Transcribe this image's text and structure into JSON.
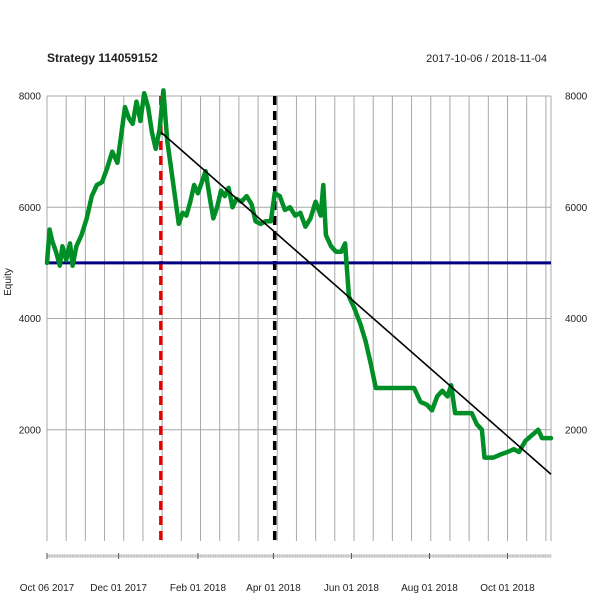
{
  "chart_data": {
    "type": "line",
    "title": "Strategy 114059152",
    "date_range": "2017-10-06 / 2018-11-04",
    "ylabel": "Equity",
    "xlabel": "",
    "x_range": [
      "2017-10-06",
      "2018-11-04"
    ],
    "ylim": [
      0,
      8000
    ],
    "y_ticks": [
      2000,
      4000,
      6000,
      8000
    ],
    "x_tick_labels": [
      {
        "date": "2017-10-06",
        "label": "Oct 06 2017"
      },
      {
        "date": "2017-12-01",
        "label": "Dec 01 2017"
      },
      {
        "date": "2018-02-01",
        "label": "Feb 01 2018"
      },
      {
        "date": "2018-04-01",
        "label": "Apr 01 2018"
      },
      {
        "date": "2018-06-01",
        "label": "Jun 01 2018"
      },
      {
        "date": "2018-08-01",
        "label": "Aug 01 2018"
      },
      {
        "date": "2018-10-01",
        "label": "Oct 01 2018"
      }
    ],
    "grid": true,
    "colors": {
      "equity": "#008f26",
      "baseline": "#000080",
      "trend": "#000000",
      "marker_red": "#e00000",
      "marker_black": "#000000",
      "grid": "#a8a8a8"
    },
    "series": [
      {
        "points": [
          [
            "2017-10-06",
            5000
          ],
          [
            "2017-10-08",
            5600
          ],
          [
            "2017-10-10",
            5400
          ],
          [
            "2017-10-13",
            5200
          ],
          [
            "2017-10-16",
            4950
          ],
          [
            "2017-10-18",
            5300
          ],
          [
            "2017-10-21",
            5050
          ],
          [
            "2017-10-24",
            5350
          ],
          [
            "2017-10-26",
            4950
          ],
          [
            "2017-10-29",
            5300
          ],
          [
            "2017-11-02",
            5500
          ],
          [
            "2017-11-06",
            5800
          ],
          [
            "2017-11-10",
            6200
          ],
          [
            "2017-11-14",
            6400
          ],
          [
            "2017-11-18",
            6450
          ],
          [
            "2017-11-22",
            6700
          ],
          [
            "2017-11-26",
            7000
          ],
          [
            "2017-11-30",
            6800
          ],
          [
            "2017-12-03",
            7300
          ],
          [
            "2017-12-06",
            7800
          ],
          [
            "2017-12-09",
            7600
          ],
          [
            "2017-12-12",
            7500
          ],
          [
            "2017-12-15",
            7900
          ],
          [
            "2017-12-18",
            7550
          ],
          [
            "2017-12-21",
            8050
          ],
          [
            "2017-12-24",
            7800
          ],
          [
            "2017-12-27",
            7350
          ],
          [
            "2017-12-30",
            7050
          ],
          [
            "2018-01-02",
            7400
          ],
          [
            "2018-01-05",
            8100
          ],
          [
            "2018-01-08",
            7200
          ],
          [
            "2018-01-11",
            6700
          ],
          [
            "2018-01-14",
            6200
          ],
          [
            "2018-01-17",
            5700
          ],
          [
            "2018-01-20",
            5900
          ],
          [
            "2018-01-23",
            5850
          ],
          [
            "2018-01-26",
            6100
          ],
          [
            "2018-01-29",
            6400
          ],
          [
            "2018-02-01",
            6250
          ],
          [
            "2018-02-04",
            6450
          ],
          [
            "2018-02-07",
            6650
          ],
          [
            "2018-02-10",
            6200
          ],
          [
            "2018-02-13",
            5800
          ],
          [
            "2018-02-16",
            6000
          ],
          [
            "2018-02-19",
            6300
          ],
          [
            "2018-02-22",
            6200
          ],
          [
            "2018-02-25",
            6350
          ],
          [
            "2018-02-28",
            6000
          ],
          [
            "2018-03-03",
            6150
          ],
          [
            "2018-03-07",
            6100
          ],
          [
            "2018-03-11",
            6200
          ],
          [
            "2018-03-15",
            6050
          ],
          [
            "2018-03-18",
            5750
          ],
          [
            "2018-03-22",
            5700
          ],
          [
            "2018-03-26",
            5750
          ],
          [
            "2018-03-30",
            5750
          ],
          [
            "2018-04-02",
            6250
          ],
          [
            "2018-04-06",
            6200
          ],
          [
            "2018-04-10",
            5950
          ],
          [
            "2018-04-14",
            6000
          ],
          [
            "2018-04-18",
            5850
          ],
          [
            "2018-04-22",
            5900
          ],
          [
            "2018-04-26",
            5650
          ],
          [
            "2018-04-30",
            5800
          ],
          [
            "2018-05-04",
            6100
          ],
          [
            "2018-05-08",
            5850
          ],
          [
            "2018-05-10",
            6400
          ],
          [
            "2018-05-12",
            5500
          ],
          [
            "2018-05-16",
            5300
          ],
          [
            "2018-05-20",
            5200
          ],
          [
            "2018-05-24",
            5200
          ],
          [
            "2018-05-27",
            5350
          ],
          [
            "2018-05-30",
            4400
          ],
          [
            "2018-06-03",
            4200
          ],
          [
            "2018-06-08",
            3900
          ],
          [
            "2018-06-12",
            3600
          ],
          [
            "2018-06-16",
            3200
          ],
          [
            "2018-06-20",
            2750
          ],
          [
            "2018-06-28",
            2750
          ],
          [
            "2018-07-10",
            2750
          ],
          [
            "2018-07-20",
            2750
          ],
          [
            "2018-07-25",
            2500
          ],
          [
            "2018-07-30",
            2450
          ],
          [
            "2018-08-03",
            2350
          ],
          [
            "2018-08-07",
            2600
          ],
          [
            "2018-08-11",
            2700
          ],
          [
            "2018-08-15",
            2600
          ],
          [
            "2018-08-18",
            2800
          ],
          [
            "2018-08-21",
            2300
          ],
          [
            "2018-08-28",
            2300
          ],
          [
            "2018-09-03",
            2300
          ],
          [
            "2018-09-07",
            2100
          ],
          [
            "2018-09-11",
            2000
          ],
          [
            "2018-09-13",
            1500
          ],
          [
            "2018-09-20",
            1500
          ],
          [
            "2018-09-25",
            1550
          ],
          [
            "2018-10-01",
            1600
          ],
          [
            "2018-10-06",
            1650
          ],
          [
            "2018-10-10",
            1600
          ],
          [
            "2018-10-15",
            1800
          ],
          [
            "2018-10-20",
            1900
          ],
          [
            "2018-10-25",
            2000
          ],
          [
            "2018-10-28",
            1850
          ],
          [
            "2018-11-04",
            1850
          ]
        ]
      }
    ],
    "baseline_value": 5000,
    "trend_line": [
      [
        "2018-01-03",
        7350
      ],
      [
        "2018-11-04",
        1200
      ]
    ],
    "vertical_markers": [
      {
        "date": "2018-01-03",
        "color": "#e00000",
        "style": "dashed"
      },
      {
        "date": "2018-04-02",
        "color": "#000000",
        "style": "dashed"
      }
    ]
  }
}
